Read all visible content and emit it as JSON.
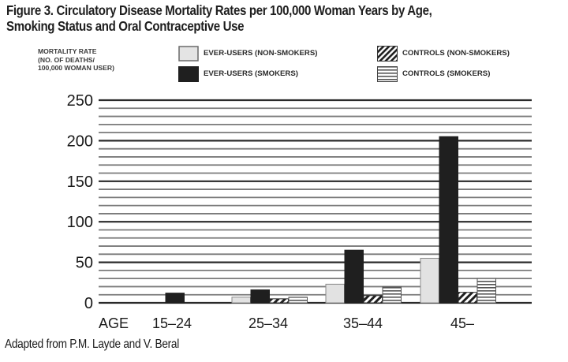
{
  "chart_data": {
    "type": "bar",
    "title": "Figure 3. Circulatory Disease Mortality Rates per 100,000 Woman Years by Age, Smoking Status and Oral Contraceptive Use",
    "title_lines": [
      "Figure 3. Circulatory Disease Mortality Rates per 100,000 Woman Years by Age,",
      "Smoking Status and Oral Contraceptive Use"
    ],
    "ylabel_lines": [
      "MORTALITY RATE",
      "(NO. OF DEATHS/",
      "100,000 WOMAN USER)"
    ],
    "xlabel": "AGE",
    "categories": [
      "15–24",
      "25–34",
      "35–44",
      "45–"
    ],
    "ylim": [
      0,
      250
    ],
    "yticks": [
      0,
      50,
      100,
      150,
      200,
      250
    ],
    "ytick_labels": [
      "0",
      "50",
      "100",
      "150",
      "200",
      "250"
    ],
    "minor_grid_step": 10,
    "grid": true,
    "legend_position": "top",
    "series": [
      {
        "name": "EVER-USERS (NON-SMOKERS)",
        "pattern": "light",
        "color": "#e2e2e2",
        "values": [
          0,
          7,
          23,
          55
        ]
      },
      {
        "name": "EVER-USERS (SMOKERS)",
        "pattern": "solid",
        "color": "#1f1f1f",
        "values": [
          12,
          16,
          65,
          205
        ]
      },
      {
        "name": "CONTROLS (NON-SMOKERS)",
        "pattern": "diagonal",
        "color": "#1f1f1f",
        "values": [
          0,
          5,
          9,
          13
        ]
      },
      {
        "name": "CONTROLS (SMOKERS)",
        "pattern": "horizontal",
        "color": "#555555",
        "values": [
          0,
          7,
          20,
          30
        ]
      }
    ],
    "source": "Adapted from P.M. Layde and V. Beral"
  }
}
